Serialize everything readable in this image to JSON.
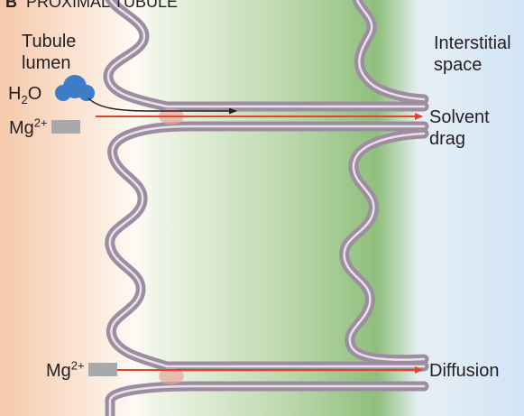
{
  "panel": {
    "letter": "B",
    "title": "PROXIMAL TUBULE"
  },
  "labels": {
    "lumen_line1": "Tubule",
    "lumen_line2": "lumen",
    "interstitial_line1": "Interstitial",
    "interstitial_line2": "space",
    "solvent_line1": "Solvent",
    "solvent_line2": "drag",
    "diffusion": "Diffusion"
  },
  "molecules": {
    "water_main": "H",
    "water_sub": "2",
    "water_tail": "O",
    "mg_main": "Mg",
    "mg_charge": "2+"
  },
  "colors": {
    "lumen_bg": "#f6d3b8",
    "interstitial_bg": "#dbe9f7",
    "cell_green": "#7fb46a",
    "membrane": "#a99aaa",
    "arrow_red": "#e0452b",
    "water_blue": "#3e7cc7",
    "mg_gray": "#a7a9ac"
  }
}
